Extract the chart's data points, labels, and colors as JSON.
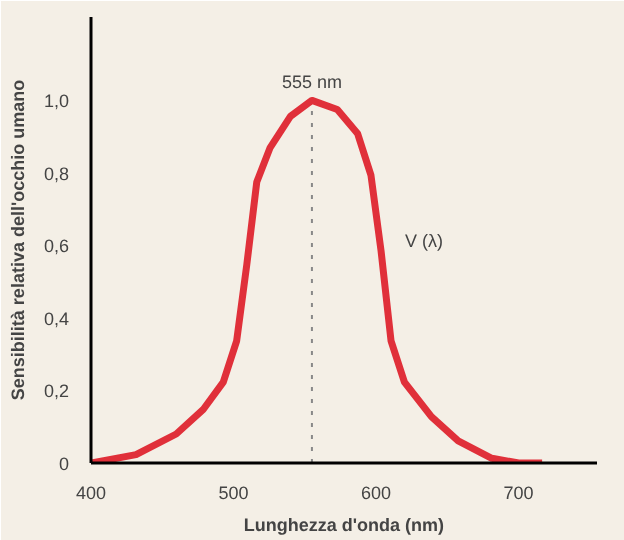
{
  "chart_data": {
    "type": "line",
    "xlabel": "Lunghezza d'onda (nm)",
    "ylabel": "Sensibilità relativa dell'occhio umano",
    "x": [
      400,
      431.6,
      459.8,
      478.6,
      492.8,
      502.2,
      509.3,
      516.3,
      525.7,
      539.9,
      555,
      572.8,
      587,
      596.4,
      603.5,
      610.5,
      619.9,
      638.8,
      657.6,
      681.2,
      700,
      716.5
    ],
    "series": [
      {
        "name": "V (λ)",
        "color": "#e0303a",
        "values": [
          0,
          0.023,
          0.08,
          0.147,
          0.223,
          0.337,
          0.547,
          0.775,
          0.87,
          0.956,
          1.0,
          0.975,
          0.909,
          0.794,
          0.585,
          0.337,
          0.223,
          0.128,
          0.061,
          0.013,
          0,
          0
        ]
      }
    ],
    "xlim": [
      400,
      755
    ],
    "ylim": [
      0,
      1.23
    ],
    "xticks": [
      400,
      500,
      600,
      700
    ],
    "yticks": [
      0,
      {
        "value": 0.2,
        "label": "0,2"
      },
      {
        "value": 0.4,
        "label": "0,4"
      },
      {
        "value": 0.6,
        "label": "0,6"
      },
      {
        "value": 0.8,
        "label": "0,8"
      },
      {
        "value": 1.0,
        "label": "1,0"
      }
    ],
    "ref_lines": [
      {
        "axis": "x",
        "value": 555,
        "label": "555 nm",
        "line_style": "dotted",
        "color": "#888888"
      }
    ],
    "grid": false,
    "legend": false,
    "marker": "none",
    "line_style": "solid"
  }
}
